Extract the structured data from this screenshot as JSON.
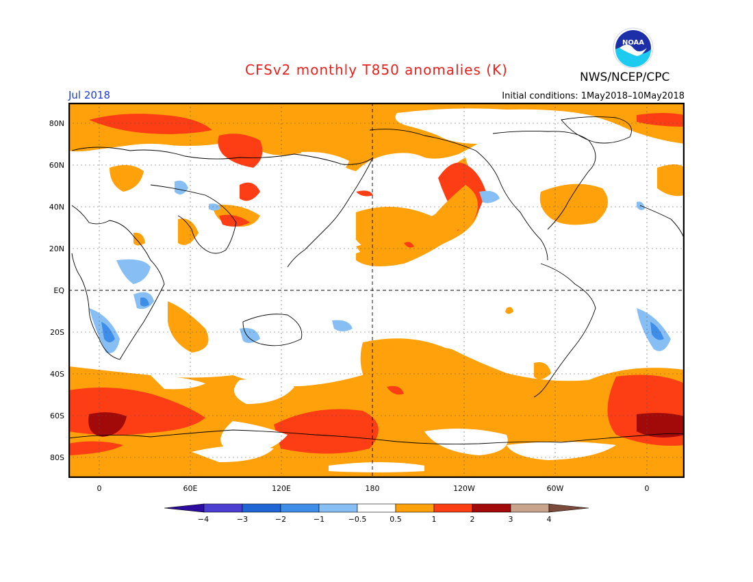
{
  "title": "CFSv2 monthly T850 anomalies (K)",
  "agency": "NWS/NCEP/CPC",
  "logo_text": "NOAA",
  "valid_month": "Jul 2018",
  "initial_conditions": "Initial conditions: 1May2018–10May2018",
  "lat_labels": [
    "80N",
    "60N",
    "40N",
    "20N",
    "EQ",
    "20S",
    "40S",
    "60S",
    "80S"
  ],
  "lon_labels": [
    "0",
    "60E",
    "120E",
    "180",
    "120W",
    "60W",
    "0"
  ],
  "colorbar": {
    "labels": [
      "−4",
      "−3",
      "−2",
      "−1",
      "−0.5",
      "0.5",
      "1",
      "2",
      "3",
      "4"
    ],
    "colors": [
      "#2c0c9e",
      "#4a3fd1",
      "#1f66d4",
      "#3e8de8",
      "#87bff5",
      "#ffffff",
      "#ffa10a",
      "#fd3d14",
      "#a20a0a",
      "#c8a48c",
      "#7a4a3a"
    ]
  },
  "colors": {
    "orange": "#ffa10a",
    "red": "#fd3d14",
    "darkred": "#a20a0a",
    "lightblue": "#87bff5",
    "blue": "#3e8de8"
  }
}
